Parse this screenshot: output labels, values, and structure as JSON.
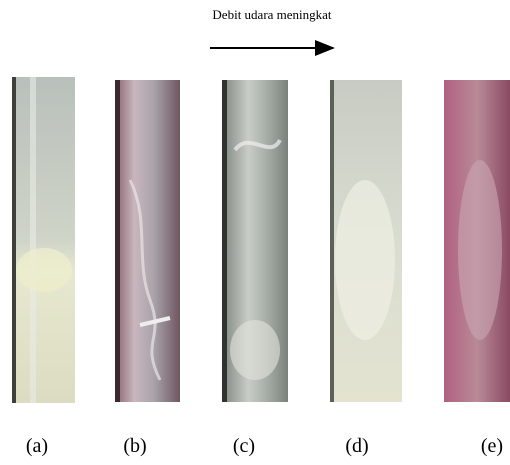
{
  "figure": {
    "title": "Debit udara meningkat",
    "labels": [
      "(a)",
      "(b)",
      "(c)",
      "(d)",
      "(e)"
    ]
  }
}
